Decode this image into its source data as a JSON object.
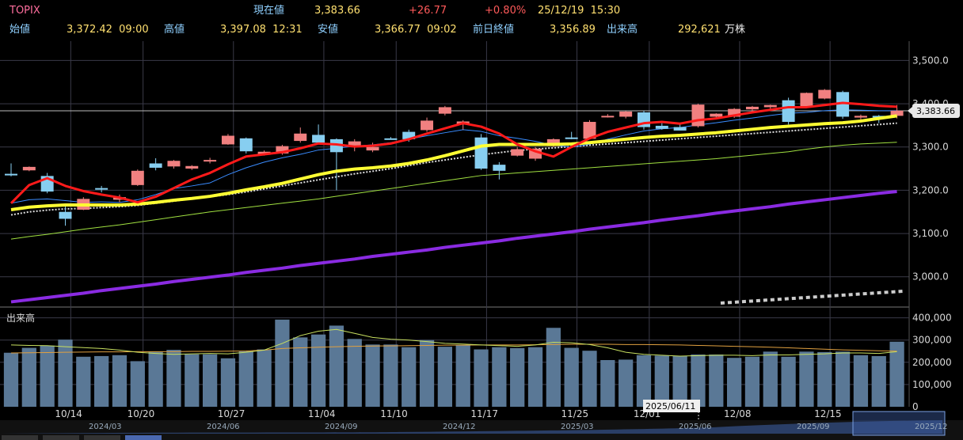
{
  "header": {
    "symbol": "TOPIX",
    "current_label": "現在値",
    "current_value": "3,383.66",
    "change": "+26.77",
    "change_pct": "+0.80%",
    "datetime": "25/12/19  15:30",
    "open_label": "始値",
    "open_value": "3,372.42  09:00",
    "high_label": "高値",
    "high_value": "3,397.08  12:31",
    "low_label": "安値",
    "low_value": "3,366.77  09:02",
    "prev_close_label": "前日終値",
    "prev_close_value": "3,356.89",
    "volume_label": "出来高",
    "volume_value": "292,621",
    "volume_unit": "万株"
  },
  "colors": {
    "up_candle": "#f08080",
    "down_candle": "#87cef0",
    "ma_red": "#ff1a1a",
    "ma_yellow": "#ffff33",
    "ma_blue": "#3a8cff",
    "ma_green": "#a0e040",
    "ma_purple": "#8a2be2",
    "volume_bar": "#5a7896"
  },
  "chart_data": {
    "type": "candlestick",
    "price_axis": {
      "ticks": [
        3000,
        3100,
        3200,
        3300,
        3400,
        3500
      ],
      "tick_labels": [
        "3,000.0",
        "3,100.0",
        "3,200.0",
        "3,300.0",
        "3,400.0",
        "3,500.0"
      ],
      "ylim": [
        2930,
        3530
      ]
    },
    "current_price_label": "3,383.66",
    "current_price": 3383.66,
    "x_date_labels": [
      {
        "label": "10/14",
        "index": 3
      },
      {
        "label": "10/20",
        "index": 7
      },
      {
        "label": "10/27",
        "index": 12
      },
      {
        "label": "11/04",
        "index": 17
      },
      {
        "label": "11/10",
        "index": 21
      },
      {
        "label": "11/17",
        "index": 26
      },
      {
        "label": "11/25",
        "index": 31
      },
      {
        "label": "12/01",
        "index": 35
      },
      {
        "label": "12/08",
        "index": 40
      },
      {
        "label": "12/15",
        "index": 45
      }
    ],
    "candles": [
      {
        "o": 3238,
        "h": 3262,
        "l": 3232,
        "c": 3236
      },
      {
        "o": 3246,
        "h": 3255,
        "l": 3244,
        "c": 3254
      },
      {
        "o": 3233,
        "h": 3240,
        "l": 3193,
        "c": 3197
      },
      {
        "o": 3150,
        "h": 3165,
        "l": 3118,
        "c": 3134
      },
      {
        "o": 3155,
        "h": 3184,
        "l": 3154,
        "c": 3180
      },
      {
        "o": 3205,
        "h": 3210,
        "l": 3195,
        "c": 3203
      },
      {
        "o": 3178,
        "h": 3190,
        "l": 3172,
        "c": 3184
      },
      {
        "o": 3212,
        "h": 3248,
        "l": 3210,
        "c": 3245
      },
      {
        "o": 3262,
        "h": 3274,
        "l": 3246,
        "c": 3252
      },
      {
        "o": 3255,
        "h": 3270,
        "l": 3250,
        "c": 3268
      },
      {
        "o": 3250,
        "h": 3258,
        "l": 3247,
        "c": 3256
      },
      {
        "o": 3268,
        "h": 3275,
        "l": 3262,
        "c": 3270
      },
      {
        "o": 3306,
        "h": 3330,
        "l": 3305,
        "c": 3326
      },
      {
        "o": 3320,
        "h": 3322,
        "l": 3285,
        "c": 3290
      },
      {
        "o": 3282,
        "h": 3292,
        "l": 3280,
        "c": 3289
      },
      {
        "o": 3285,
        "h": 3305,
        "l": 3282,
        "c": 3302
      },
      {
        "o": 3314,
        "h": 3345,
        "l": 3310,
        "c": 3331
      },
      {
        "o": 3328,
        "h": 3352,
        "l": 3308,
        "c": 3310
      },
      {
        "o": 3318,
        "h": 3320,
        "l": 3200,
        "c": 3288
      },
      {
        "o": 3300,
        "h": 3318,
        "l": 3290,
        "c": 3313
      },
      {
        "o": 3292,
        "h": 3310,
        "l": 3288,
        "c": 3300
      },
      {
        "o": 3320,
        "h": 3323,
        "l": 3318,
        "c": 3318
      },
      {
        "o": 3335,
        "h": 3340,
        "l": 3312,
        "c": 3318
      },
      {
        "o": 3339,
        "h": 3368,
        "l": 3335,
        "c": 3361
      },
      {
        "o": 3377,
        "h": 3395,
        "l": 3373,
        "c": 3392
      },
      {
        "o": 3352,
        "h": 3362,
        "l": 3340,
        "c": 3359
      },
      {
        "o": 3322,
        "h": 3330,
        "l": 3247,
        "c": 3250
      },
      {
        "o": 3259,
        "h": 3265,
        "l": 3225,
        "c": 3245
      },
      {
        "o": 3280,
        "h": 3300,
        "l": 3278,
        "c": 3295
      },
      {
        "o": 3273,
        "h": 3300,
        "l": 3268,
        "c": 3296
      },
      {
        "o": 3302,
        "h": 3320,
        "l": 3300,
        "c": 3318
      },
      {
        "o": 3322,
        "h": 3335,
        "l": 3318,
        "c": 3320
      },
      {
        "o": 3319,
        "h": 3362,
        "l": 3318,
        "c": 3358
      },
      {
        "o": 3370,
        "h": 3376,
        "l": 3368,
        "c": 3372
      },
      {
        "o": 3370,
        "h": 3383,
        "l": 3366,
        "c": 3382
      },
      {
        "o": 3380,
        "h": 3384,
        "l": 3340,
        "c": 3346
      },
      {
        "o": 3349,
        "h": 3355,
        "l": 3340,
        "c": 3342
      },
      {
        "o": 3346,
        "h": 3354,
        "l": 3338,
        "c": 3338
      },
      {
        "o": 3348,
        "h": 3400,
        "l": 3345,
        "c": 3398
      },
      {
        "o": 3370,
        "h": 3378,
        "l": 3365,
        "c": 3377
      },
      {
        "o": 3370,
        "h": 3390,
        "l": 3367,
        "c": 3388
      },
      {
        "o": 3387,
        "h": 3395,
        "l": 3383,
        "c": 3393
      },
      {
        "o": 3392,
        "h": 3398,
        "l": 3388,
        "c": 3397
      },
      {
        "o": 3408,
        "h": 3414,
        "l": 3352,
        "c": 3358
      },
      {
        "o": 3394,
        "h": 3426,
        "l": 3392,
        "c": 3425
      },
      {
        "o": 3412,
        "h": 3434,
        "l": 3410,
        "c": 3432
      },
      {
        "o": 3427,
        "h": 3430,
        "l": 3365,
        "c": 3370
      },
      {
        "o": 3368,
        "h": 3375,
        "l": 3360,
        "c": 3372
      },
      {
        "o": 3372,
        "h": 3374,
        "l": 3355,
        "c": 3368
      },
      {
        "o": 3372,
        "h": 3397,
        "l": 3366,
        "c": 3384
      }
    ],
    "ma_red": [
      3170,
      3212,
      3228,
      3210,
      3198,
      3190,
      3183,
      3172,
      3185,
      3205,
      3225,
      3240,
      3260,
      3278,
      3283,
      3288,
      3297,
      3308,
      3306,
      3301,
      3303,
      3308,
      3318,
      3331,
      3343,
      3355,
      3347,
      3331,
      3306,
      3290,
      3278,
      3300,
      3320,
      3335,
      3345,
      3355,
      3358,
      3354,
      3362,
      3366,
      3373,
      3380,
      3386,
      3392,
      3392,
      3397,
      3402,
      3399,
      3395,
      3393
    ],
    "ma_blue": [
      3170,
      3178,
      3180,
      3176,
      3172,
      3173,
      3172,
      3178,
      3190,
      3204,
      3210,
      3217,
      3236,
      3252,
      3265,
      3275,
      3283,
      3293,
      3297,
      3302,
      3305,
      3310,
      3318,
      3326,
      3333,
      3340,
      3336,
      3326,
      3320,
      3313,
      3304,
      3300,
      3306,
      3318,
      3328,
      3337,
      3342,
      3345,
      3351,
      3356,
      3362,
      3367,
      3373,
      3378,
      3380,
      3384,
      3386,
      3385,
      3384,
      3384
    ],
    "ma_yellow": [
      3155,
      3161,
      3164,
      3166,
      3166,
      3166,
      3166,
      3168,
      3172,
      3177,
      3181,
      3186,
      3193,
      3201,
      3208,
      3216,
      3226,
      3236,
      3244,
      3249,
      3252,
      3256,
      3262,
      3270,
      3280,
      3291,
      3302,
      3306,
      3306,
      3306,
      3306,
      3307,
      3310,
      3314,
      3318,
      3322,
      3325,
      3327,
      3330,
      3333,
      3337,
      3341,
      3345,
      3348,
      3351,
      3354,
      3356,
      3360,
      3366,
      3372
    ],
    "ma_dotted": [
      3143,
      3150,
      3154,
      3157,
      3158,
      3160,
      3162,
      3165,
      3170,
      3175,
      3180,
      3185,
      3190,
      3196,
      3203,
      3210,
      3217,
      3224,
      3231,
      3238,
      3244,
      3250,
      3257,
      3264,
      3270,
      3276,
      3282,
      3287,
      3292,
      3295,
      3298,
      3301,
      3304,
      3307,
      3310,
      3313,
      3316,
      3319,
      3322,
      3325,
      3328,
      3331,
      3334,
      3337,
      3340,
      3343,
      3346,
      3349,
      3352,
      3355
    ],
    "ma_green": [
      3087,
      3093,
      3098,
      3104,
      3110,
      3115,
      3120,
      3126,
      3132,
      3138,
      3144,
      3150,
      3155,
      3160,
      3165,
      3170,
      3175,
      3180,
      3186,
      3192,
      3198,
      3204,
      3210,
      3216,
      3222,
      3228,
      3234,
      3237,
      3240,
      3243,
      3246,
      3249,
      3252,
      3255,
      3258,
      3261,
      3264,
      3267,
      3270,
      3273,
      3277,
      3281,
      3285,
      3289,
      3295,
      3300,
      3304,
      3307,
      3309,
      3311
    ],
    "ma_purple": [
      2942,
      2947,
      2952,
      2957,
      2962,
      2968,
      2973,
      2978,
      2983,
      2989,
      2994,
      2999,
      3004,
      3010,
      3015,
      3020,
      3026,
      3031,
      3036,
      3041,
      3047,
      3052,
      3057,
      3062,
      3068,
      3073,
      3078,
      3083,
      3089,
      3094,
      3099,
      3104,
      3110,
      3115,
      3120,
      3125,
      3131,
      3136,
      3141,
      3147,
      3152,
      3157,
      3162,
      3168,
      3173,
      3178,
      3183,
      3188,
      3193,
      3197
    ],
    "volume": {
      "label": "出来高",
      "ticks": [
        0,
        100000,
        200000,
        300000,
        400000
      ],
      "tick_labels": [
        "0",
        "100,000",
        "200,000",
        "300,000",
        "400,000"
      ],
      "ylim": [
        0,
        420000
      ],
      "values": [
        243000,
        265000,
        275000,
        302000,
        225000,
        228000,
        232000,
        205000,
        247000,
        256000,
        236000,
        236000,
        218000,
        250000,
        258000,
        392000,
        312000,
        325000,
        365000,
        305000,
        280000,
        280000,
        268000,
        300000,
        270000,
        278000,
        258000,
        268000,
        264000,
        268000,
        355000,
        265000,
        252000,
        210000,
        212000,
        232000,
        230000,
        228000,
        235000,
        235000,
        220000,
        225000,
        248000,
        225000,
        248000,
        246000,
        248000,
        232000,
        228000,
        292621
      ],
      "ma_orange": [
        242000,
        243000,
        244000,
        245000,
        246000,
        247000,
        247000,
        248000,
        248000,
        248000,
        249000,
        249000,
        250000,
        251000,
        255000,
        262000,
        265000,
        268000,
        270000,
        272000,
        273000,
        274000,
        275000,
        276000,
        277000,
        277000,
        278000,
        278000,
        278000,
        279000,
        280000,
        281000,
        281000,
        281000,
        280000,
        280000,
        279000,
        278000,
        276000,
        274000,
        272000,
        270000,
        268000,
        265000,
        262000,
        259000,
        256000,
        254000,
        252000,
        250000
      ],
      "ma_thin": [
        278000,
        276000,
        275000,
        270000,
        266000,
        262000,
        255000,
        245000,
        240000,
        236000,
        238000,
        240000,
        238000,
        245000,
        255000,
        285000,
        320000,
        340000,
        348000,
        330000,
        312000,
        304000,
        300000,
        293000,
        285000,
        282000,
        278000,
        275000,
        272000,
        278000,
        290000,
        288000,
        280000,
        265000,
        245000,
        236000,
        232000,
        228000,
        230000,
        232000,
        232000,
        230000,
        233000,
        233000,
        236000,
        238000,
        242000,
        242000,
        240000,
        248000
      ]
    },
    "navigator": {
      "labels": [
        "2024/03",
        "2024/06",
        "2024/09",
        "2024/12",
        "2025/03",
        "2025/06",
        "2025/09",
        "2025/12"
      ],
      "date_badge": "2025/06/11"
    }
  }
}
